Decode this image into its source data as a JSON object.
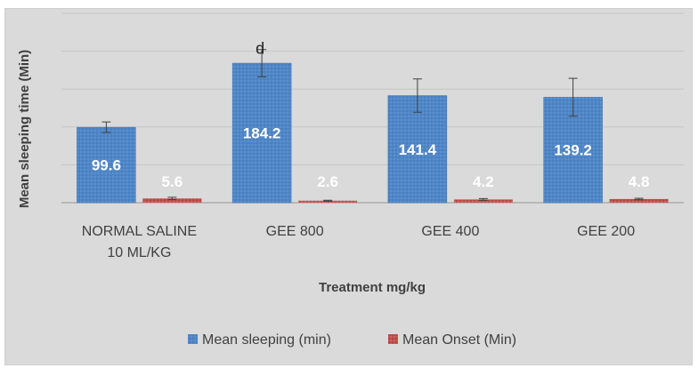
{
  "chart_data": {
    "type": "bar",
    "title": "",
    "xlabel": "Treatment mg/kg",
    "ylabel": "Mean sleeping time (Min)",
    "categories": [
      "NORMAL SALINE 10 ML/KG",
      "GEE 800",
      "GEE 400",
      "GEE 200"
    ],
    "category_lines": [
      [
        "NORMAL SALINE",
        "10 ML/KG"
      ],
      [
        "GEE 800"
      ],
      [
        "GEE 400"
      ],
      [
        "GEE 200"
      ]
    ],
    "ylim": [
      0,
      250
    ],
    "grid": true,
    "legend_position": "bottom",
    "series": [
      {
        "name": "Mean sleeping (min)",
        "color": "#4f86c6",
        "values": [
          99.6,
          184.2,
          141.4,
          139.2
        ],
        "labels": [
          "99.6",
          "184.2",
          "141.4",
          "139.2"
        ],
        "error": [
          7,
          18,
          22,
          25
        ]
      },
      {
        "name": "Mean Onset (Min)",
        "color": "#c0504d",
        "values": [
          5.6,
          2.6,
          4.2,
          4.8
        ],
        "labels": [
          "5.6",
          "2.6",
          "4.2",
          "4.8"
        ],
        "error": [
          1.5,
          0.6,
          1.2,
          1.0
        ]
      }
    ],
    "annotations": [
      {
        "category_index": 1,
        "series_index": 0,
        "text": "d"
      }
    ]
  }
}
